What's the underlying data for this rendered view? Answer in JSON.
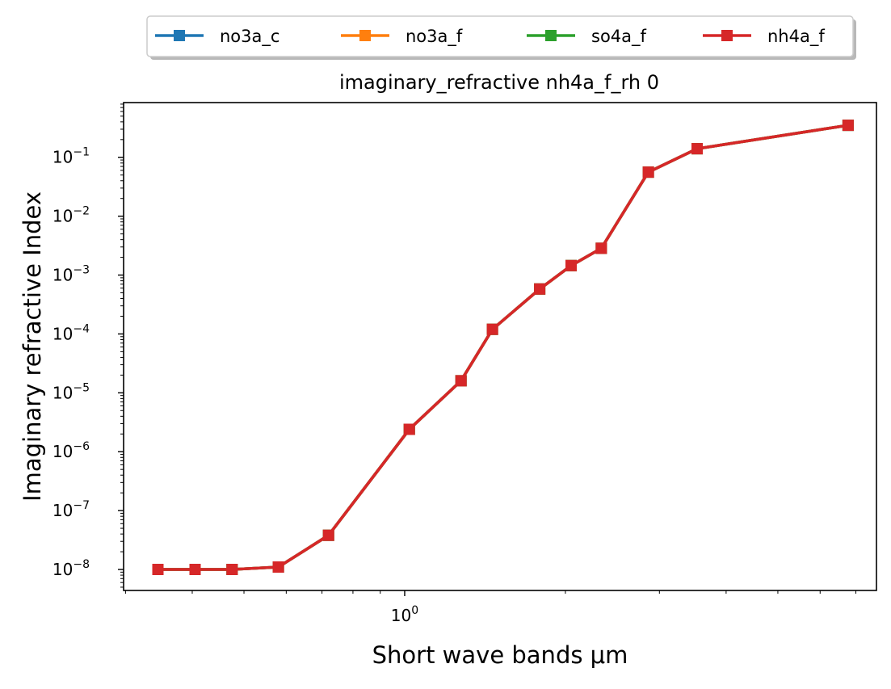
{
  "chart_data": {
    "type": "line",
    "title": "imaginary_refractive nh4a_f_rh 0",
    "xlabel": "Short wave bands μm",
    "ylabel": "Imaginary refractive Index",
    "xscale": "log",
    "yscale": "log",
    "xlim": [
      0.2975,
      7.65
    ],
    "ylim": [
      4.4e-09,
      0.85
    ],
    "x_tick_labels": [
      {
        "value": 1,
        "base": "10",
        "exp": "0"
      }
    ],
    "y_tick_labels": [
      {
        "value": 1e-08,
        "base": "10",
        "exp": "−8"
      },
      {
        "value": 1e-07,
        "base": "10",
        "exp": "−7"
      },
      {
        "value": 1e-06,
        "base": "10",
        "exp": "−6"
      },
      {
        "value": 1e-05,
        "base": "10",
        "exp": "−5"
      },
      {
        "value": 0.0001,
        "base": "10",
        "exp": "−4"
      },
      {
        "value": 0.001,
        "base": "10",
        "exp": "−3"
      },
      {
        "value": 0.01,
        "base": "10",
        "exp": "−2"
      },
      {
        "value": 0.1,
        "base": "10",
        "exp": "−1"
      }
    ],
    "grid": false,
    "legend_position": "top-center",
    "x": [
      0.345,
      0.405,
      0.475,
      0.58,
      0.72,
      1.02,
      1.275,
      1.46,
      1.79,
      2.05,
      2.335,
      2.86,
      3.53,
      6.77
    ],
    "series": [
      {
        "name": "no3a_c",
        "color": "#1f77b4",
        "values": [
          1e-08,
          1e-08,
          1e-08,
          1.1e-08,
          3.8e-08,
          2.4e-06,
          1.6e-05,
          0.00012,
          0.00058,
          0.00145,
          0.00285,
          0.056,
          0.14,
          0.35
        ]
      },
      {
        "name": "no3a_f",
        "color": "#ff7f0e",
        "values": [
          1e-08,
          1e-08,
          1e-08,
          1.1e-08,
          3.8e-08,
          2.4e-06,
          1.6e-05,
          0.00012,
          0.00058,
          0.00145,
          0.00285,
          0.056,
          0.14,
          0.35
        ]
      },
      {
        "name": "so4a_f",
        "color": "#2ca02c",
        "values": [
          1e-08,
          1e-08,
          1e-08,
          1.1e-08,
          3.8e-08,
          2.4e-06,
          1.6e-05,
          0.00012,
          0.00058,
          0.00145,
          0.00285,
          0.056,
          0.14,
          0.35
        ]
      },
      {
        "name": "nh4a_f",
        "color": "#d62728",
        "values": [
          1e-08,
          1e-08,
          1e-08,
          1.1e-08,
          3.8e-08,
          2.4e-06,
          1.6e-05,
          0.00012,
          0.00058,
          0.00145,
          0.00285,
          0.056,
          0.14,
          0.35
        ]
      }
    ]
  }
}
